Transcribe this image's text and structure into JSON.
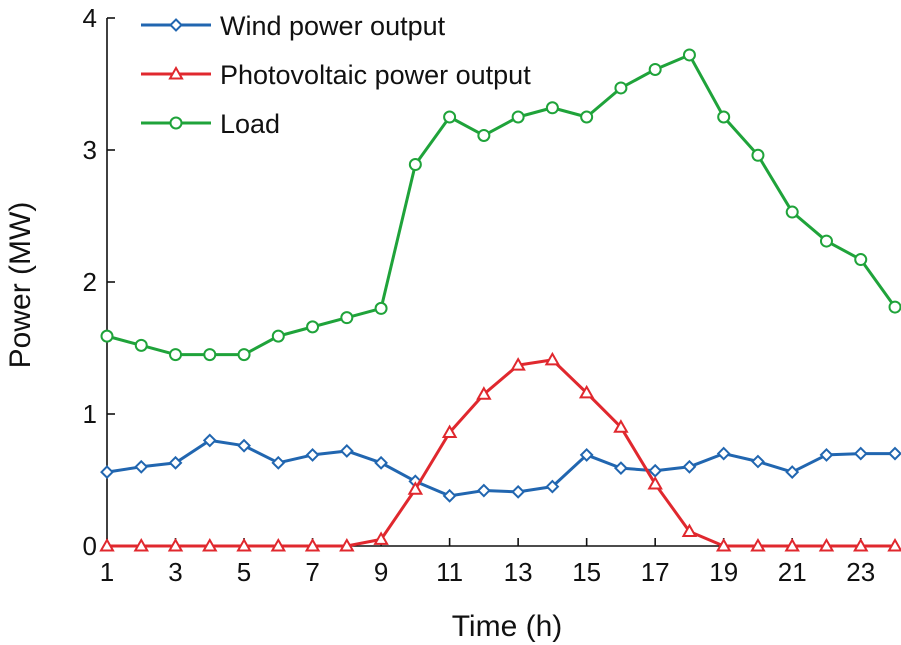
{
  "chart_data": {
    "type": "line",
    "title": "",
    "xlabel": "Time (h)",
    "ylabel": "Power (MW)",
    "xlim": [
      1,
      24
    ],
    "ylim": [
      0,
      4
    ],
    "x_ticks": [
      "1",
      "3",
      "5",
      "7",
      "9",
      "11",
      "13",
      "15",
      "17",
      "19",
      "21",
      "23"
    ],
    "y_ticks": [
      "0",
      "1",
      "2",
      "3",
      "4"
    ],
    "x": [
      1,
      2,
      3,
      4,
      5,
      6,
      7,
      8,
      9,
      10,
      11,
      12,
      13,
      14,
      15,
      16,
      17,
      18,
      19,
      20,
      21,
      22,
      23,
      24
    ],
    "legend_position": "top-left",
    "series": [
      {
        "name": "Wind power output",
        "color": "#2166b0",
        "marker": "diamond",
        "values": [
          0.56,
          0.6,
          0.63,
          0.8,
          0.76,
          0.63,
          0.69,
          0.72,
          0.63,
          0.49,
          0.38,
          0.42,
          0.41,
          0.45,
          0.69,
          0.59,
          0.57,
          0.6,
          0.7,
          0.64,
          0.56,
          0.69,
          0.7,
          0.7
        ]
      },
      {
        "name": "Photovoltaic power output",
        "color": "#e0282e",
        "marker": "triangle",
        "values": [
          0,
          0,
          0,
          0,
          0,
          0,
          0,
          0,
          0.05,
          0.43,
          0.86,
          1.15,
          1.37,
          1.41,
          1.16,
          0.9,
          0.47,
          0.11,
          0,
          0,
          0,
          0,
          0,
          0
        ]
      },
      {
        "name": "Load",
        "color": "#1fa33a",
        "marker": "circle",
        "values": [
          1.59,
          1.52,
          1.45,
          1.45,
          1.45,
          1.59,
          1.66,
          1.73,
          1.8,
          2.89,
          3.25,
          3.11,
          3.25,
          3.32,
          3.25,
          3.47,
          3.61,
          3.72,
          3.25,
          2.96,
          2.53,
          2.31,
          2.17,
          1.81
        ]
      }
    ]
  }
}
